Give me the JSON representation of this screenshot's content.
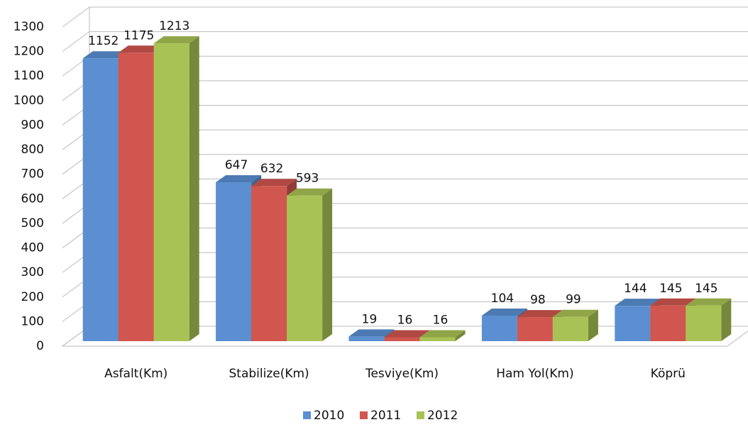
{
  "chart_data": {
    "type": "bar3d",
    "categories": [
      "Asfalt(Km)",
      "Stabilize(Km)",
      "Tesviye(Km)",
      "Ham Yol(Km)",
      "Köprü"
    ],
    "series": [
      {
        "name": "2010",
        "color": "#5b8fd1",
        "values": [
          1152,
          647,
          19,
          104,
          144
        ]
      },
      {
        "name": "2011",
        "color": "#d0564f",
        "values": [
          1175,
          632,
          16,
          98,
          145
        ]
      },
      {
        "name": "2012",
        "color": "#a9c255",
        "values": [
          1213,
          593,
          16,
          99,
          145
        ]
      }
    ],
    "ylim": [
      0,
      1300
    ],
    "yticks": [
      0,
      100,
      200,
      300,
      400,
      500,
      600,
      700,
      800,
      900,
      1000,
      1100,
      1200,
      1300
    ],
    "grid": true,
    "legend": "bottom"
  }
}
